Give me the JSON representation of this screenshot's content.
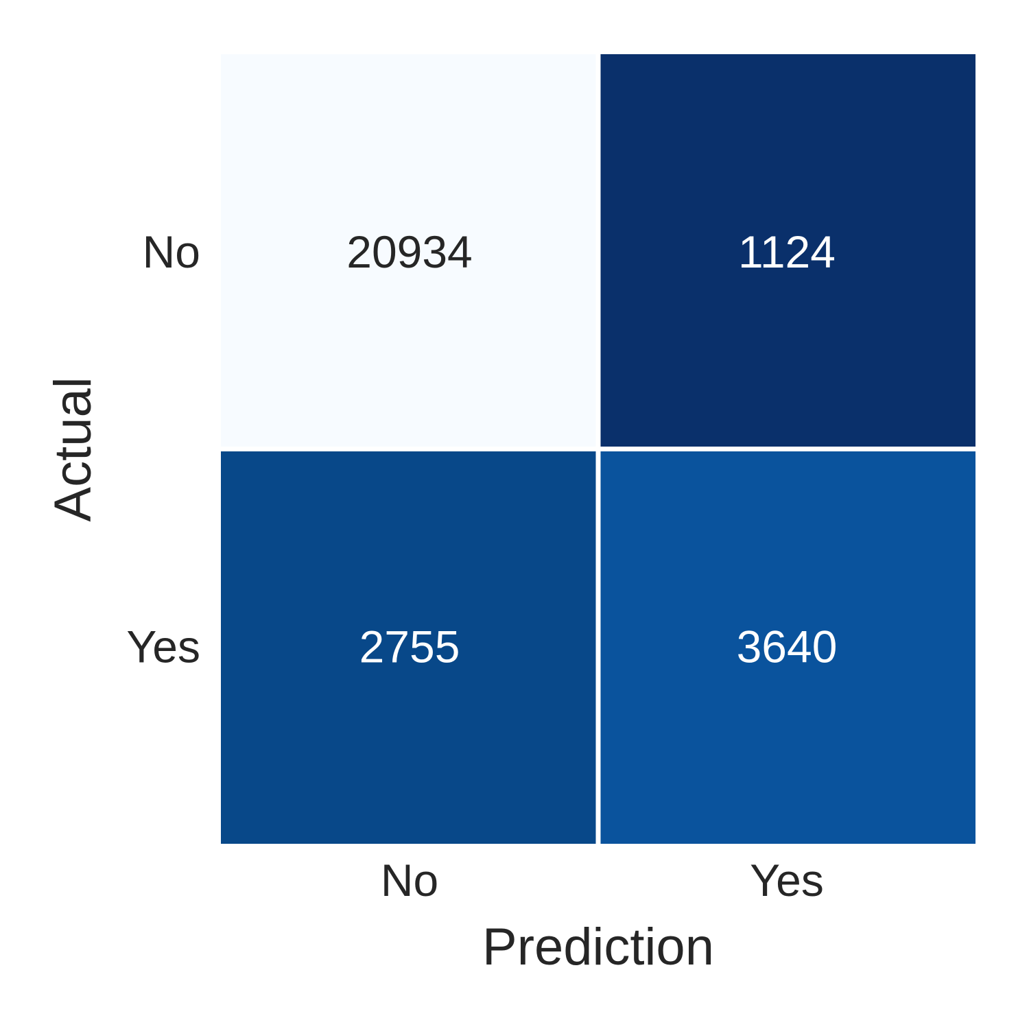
{
  "chart_data": {
    "type": "heatmap",
    "x_categories": [
      "No",
      "Yes"
    ],
    "y_categories": [
      "No",
      "Yes"
    ],
    "values": [
      [
        20934,
        1124
      ],
      [
        2755,
        3640
      ]
    ],
    "cell_colors": [
      [
        "#f7fbff",
        "#0a306b"
      ],
      [
        "#084889",
        "#0a539d"
      ]
    ],
    "cell_text_colors": [
      [
        "#262626",
        "#ffffff"
      ],
      [
        "#ffffff",
        "#ffffff"
      ]
    ],
    "xlabel": "Prediction",
    "ylabel": "Actual",
    "colormap": "Blues",
    "colorbar": false,
    "grid": false
  }
}
